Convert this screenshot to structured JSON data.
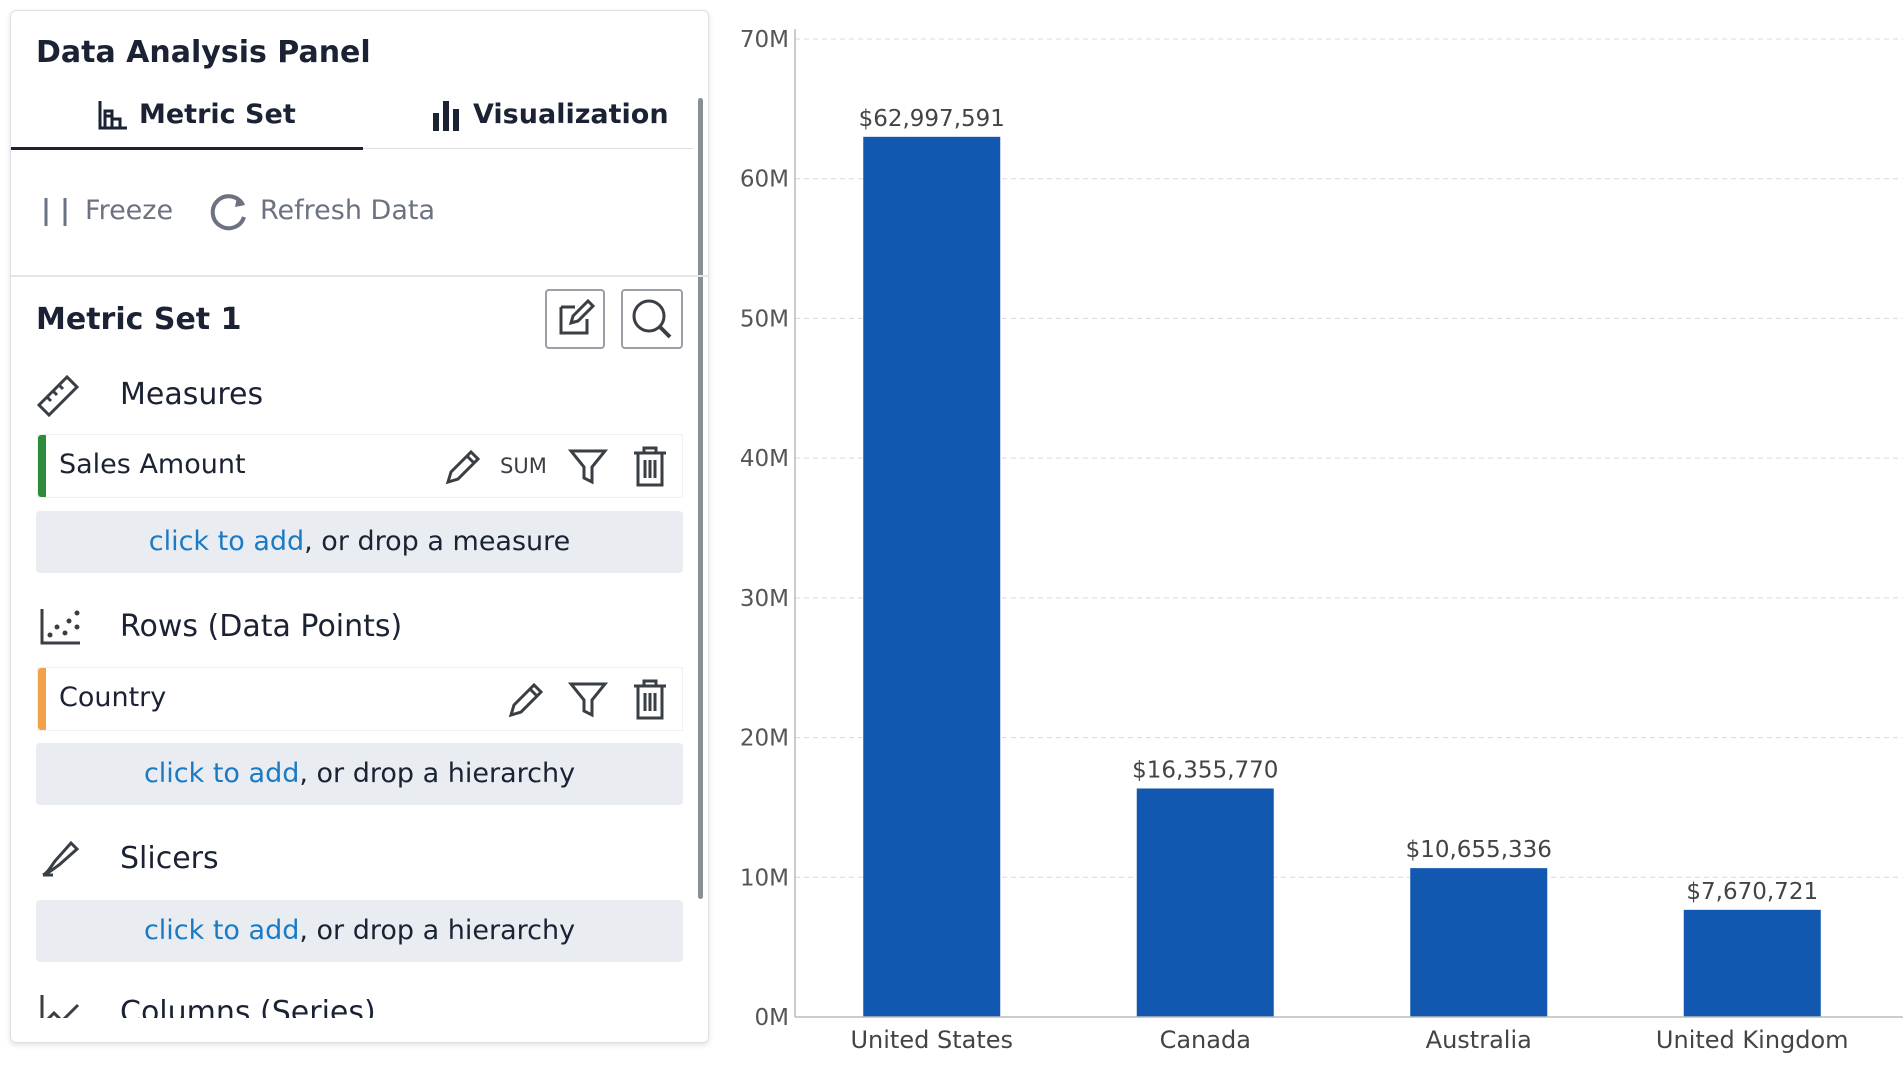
{
  "panel": {
    "title": "Data Analysis Panel",
    "tabs": [
      "Metric Set",
      "Visualization"
    ],
    "toolbar": [
      "Freeze",
      "Refresh Data"
    ],
    "metric_set_name": "Metric Set 1",
    "sections": [
      {
        "name": "Measures",
        "items": [
          {
            "label": "Sales Amount",
            "aggregation": "SUM"
          }
        ],
        "add_link": "click to add",
        "add_rest": ", or drop a measure"
      },
      {
        "name": "Rows (Data Points)",
        "items": [
          {
            "label": "Country"
          }
        ],
        "add_link": "click to add",
        "add_rest": ", or drop a hierarchy"
      },
      {
        "name": "Slicers",
        "add_link": "click to add",
        "add_rest": ", or drop a hierarchy"
      },
      {
        "name": "Columns (Series)"
      }
    ]
  },
  "chart_data": {
    "type": "bar",
    "categories": [
      "United States",
      "Canada",
      "Australia",
      "United Kingdom"
    ],
    "values": [
      62997591,
      16355770,
      10655336,
      7670721
    ],
    "value_labels": [
      "$62,997,591",
      "$16,355,770",
      "$10,655,336",
      "$7,670,721"
    ],
    "color": "#1257b0",
    "ylim": [
      0,
      70000000
    ],
    "yticks": [
      {
        "value": 0,
        "label": "0M"
      },
      {
        "value": 10000000,
        "label": "10M"
      },
      {
        "value": 20000000,
        "label": "20M"
      },
      {
        "value": 30000000,
        "label": "30M"
      },
      {
        "value": 40000000,
        "label": "40M"
      },
      {
        "value": 50000000,
        "label": "50M"
      },
      {
        "value": 60000000,
        "label": "60M"
      },
      {
        "value": 70000000,
        "label": "70M"
      }
    ],
    "grid": true
  }
}
